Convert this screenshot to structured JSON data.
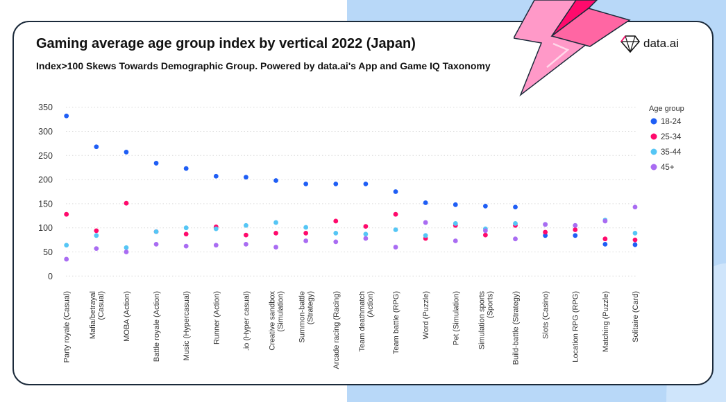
{
  "header": {
    "title": "Gaming average age group index by vertical 2022 (Japan)",
    "subtitle": "Index>100 Skews Towards Demographic Group. Powered by data.ai's App and Game IQ Taxonomy",
    "logo_text": "data.ai"
  },
  "chart_data": {
    "type": "scatter",
    "title": "Gaming average age group index by vertical 2022 (Japan)",
    "subtitle": "Index>100 Skews Towards Demographic Group. Powered by data.ai's App and Game IQ Taxonomy",
    "xlabel": "",
    "ylabel": "",
    "ylim": [
      0,
      350
    ],
    "yticks": [
      0,
      50,
      100,
      150,
      200,
      250,
      300,
      350
    ],
    "grid": true,
    "legend_title": "Age group",
    "legend_position": "right",
    "categories": [
      [
        "Party royale (Casual)"
      ],
      [
        "Mafia/betrayal",
        "(Casual)"
      ],
      [
        "MOBA (Action)"
      ],
      [
        "Battle royale (Action)"
      ],
      [
        "Music (Hypercasual)"
      ],
      [
        "Runner (Action)"
      ],
      [
        ".io (Hyper casual)"
      ],
      [
        "Creative sandbox",
        "(Simulation)"
      ],
      [
        "Summon-battle",
        "(Strategy)"
      ],
      [
        "Arcade racing (Racing)"
      ],
      [
        "Team deathmatch",
        "(Action)"
      ],
      [
        "Team battle (RPG)"
      ],
      [
        "Word (Puzzle)"
      ],
      [
        "Pet (Simulation)"
      ],
      [
        "Simulation sports",
        "(Sports)"
      ],
      [
        "Build-battle (Strategy)"
      ],
      [
        "Slots (Casino)"
      ],
      [
        "Location RPG (RPG)"
      ],
      [
        "Matching (Puzzle)"
      ],
      [
        "Solitaire (Card)"
      ]
    ],
    "series": [
      {
        "name": "18-24",
        "color": "#1f5ef5",
        "values": [
          332,
          268,
          257,
          234,
          223,
          207,
          205,
          198,
          191,
          191,
          191,
          175,
          152,
          148,
          145,
          143,
          84,
          84,
          66,
          65
        ]
      },
      {
        "name": "25-34",
        "color": "#ff0a6c",
        "values": [
          128,
          94,
          151,
          92,
          87,
          102,
          85,
          89,
          89,
          114,
          103,
          128,
          78,
          105,
          85,
          105,
          91,
          96,
          77,
          75
        ]
      },
      {
        "name": "35-44",
        "color": "#55c6f5",
        "values": [
          64,
          84,
          59,
          92,
          100,
          98,
          105,
          111,
          101,
          89,
          87,
          96,
          84,
          109,
          98,
          109,
          107,
          105,
          116,
          89
        ]
      },
      {
        "name": "45+",
        "color": "#a96cf2",
        "values": [
          35,
          57,
          50,
          66,
          62,
          64,
          66,
          60,
          73,
          71,
          78,
          60,
          111,
          73,
          94,
          77,
          107,
          105,
          114,
          143
        ]
      }
    ]
  }
}
